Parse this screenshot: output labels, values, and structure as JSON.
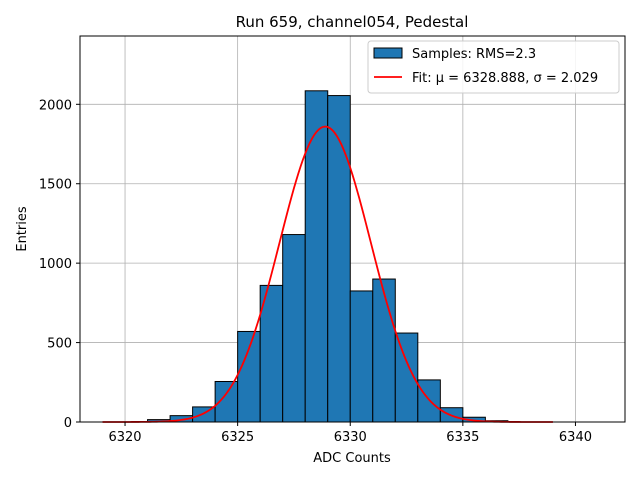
{
  "chart_data": {
    "type": "bar",
    "title": "Run 659, channel054, Pedestal",
    "xlabel": "ADC Counts",
    "ylabel": "Entries",
    "xlim": [
      6318,
      6342.2
    ],
    "ylim": [
      0,
      2430
    ],
    "xticks": [
      6320,
      6325,
      6330,
      6335,
      6340
    ],
    "yticks": [
      0,
      500,
      1000,
      1500,
      2000
    ],
    "grid": true,
    "legend_position": "top-right",
    "histogram": {
      "name": "Samples: RMS=2.3",
      "color": "#1f77b4",
      "bin_edges": [
        6321,
        6322,
        6323,
        6324,
        6325,
        6326,
        6327,
        6328,
        6329,
        6330,
        6331,
        6332,
        6333,
        6334,
        6335,
        6336,
        6337
      ],
      "counts": [
        15,
        40,
        95,
        255,
        570,
        860,
        1180,
        2085,
        2055,
        825,
        900,
        560,
        265,
        90,
        30,
        8
      ]
    },
    "fit": {
      "name": "Fit: μ = 6328.888, σ = 2.029",
      "color": "#ff0000",
      "mu": 6328.888,
      "sigma": 2.029,
      "amplitude": 1860,
      "x_range": [
        6319,
        6339
      ]
    }
  }
}
